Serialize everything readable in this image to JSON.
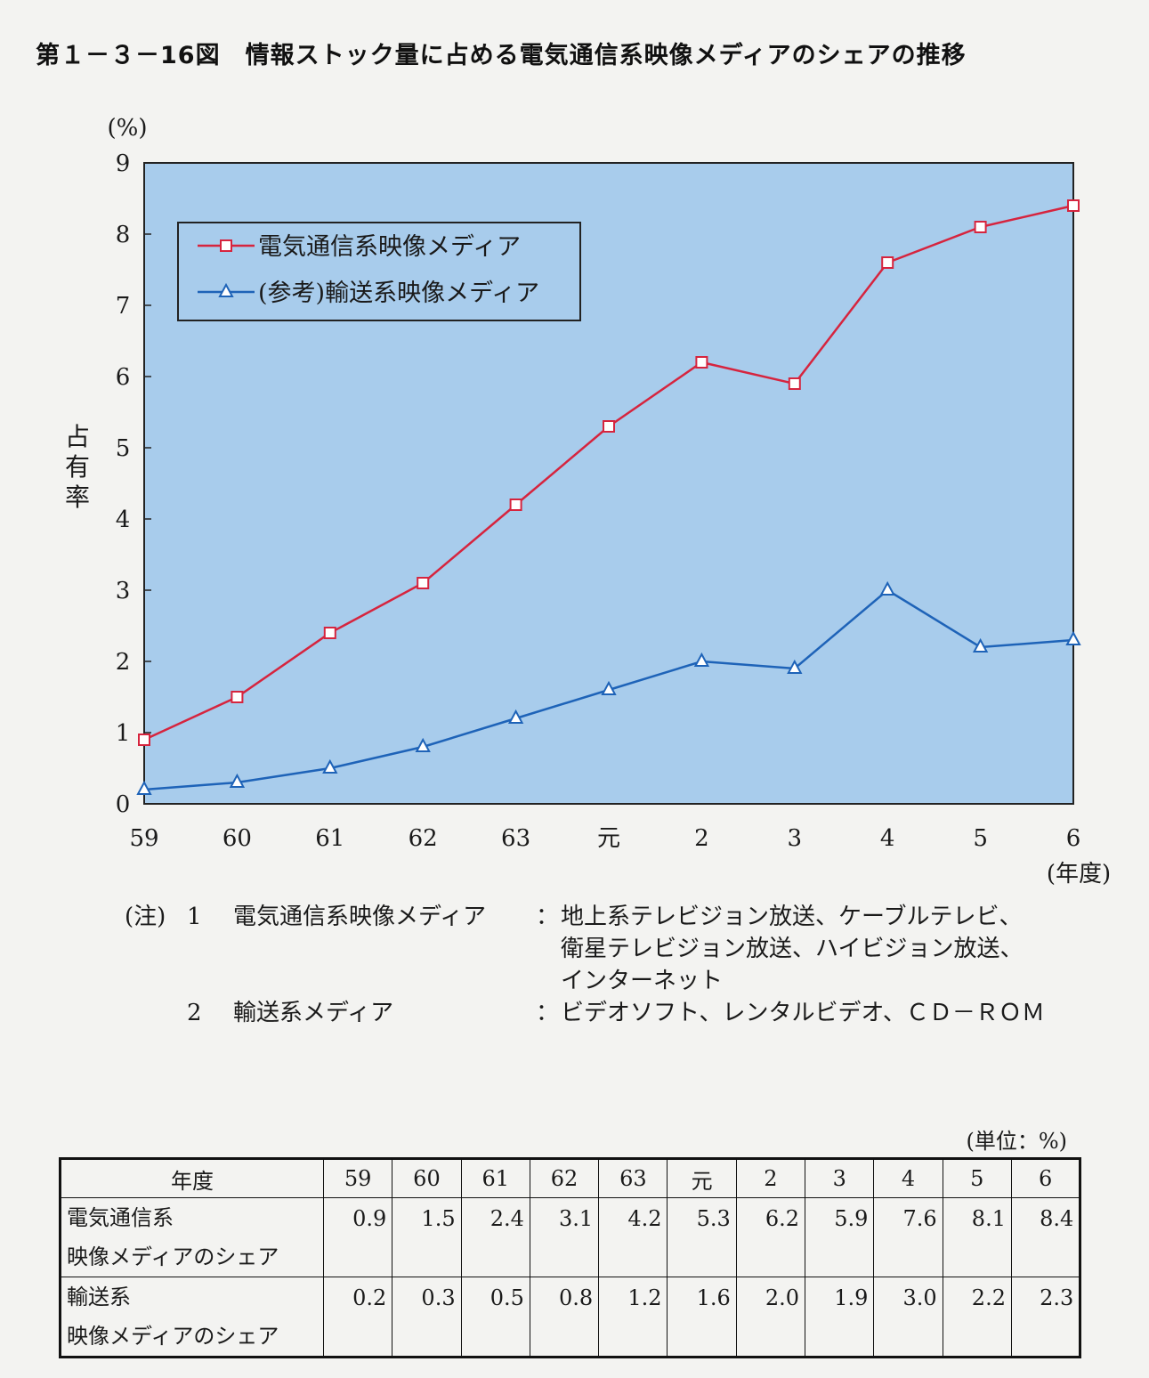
{
  "figure_title": "第１－３－16図　情報ストック量に占める電気通信系映像メディアのシェアの推移",
  "chart_data": {
    "type": "line",
    "categories": [
      "59",
      "60",
      "61",
      "62",
      "63",
      "元",
      "2",
      "3",
      "4",
      "5",
      "6"
    ],
    "series": [
      {
        "name": "電気通信系映像メディア",
        "marker": "square",
        "color": "#d6243e",
        "values": [
          0.9,
          1.5,
          2.4,
          3.1,
          4.2,
          5.3,
          6.2,
          5.9,
          7.6,
          8.1,
          8.4
        ]
      },
      {
        "name": "(参考)輸送系映像メディア",
        "marker": "triangle",
        "color": "#1e63b8",
        "values": [
          0.2,
          0.3,
          0.5,
          0.8,
          1.2,
          1.6,
          2.0,
          1.9,
          3.0,
          2.2,
          2.3
        ]
      }
    ],
    "ylabel": "占有率",
    "yunit": "(%)",
    "xunit": "(年度)",
    "ylim": [
      0,
      9
    ],
    "yticks": [
      0,
      1,
      2,
      3,
      4,
      5,
      6,
      7,
      8,
      9
    ],
    "plot_background": "#a8ccec",
    "legend_position": "top-left",
    "grid": false
  },
  "notes": {
    "prefix": "(注)",
    "items": [
      {
        "num": "1",
        "term": "電気通信系映像メディア",
        "colon": "：",
        "lines": [
          "地上系テレビジョン放送、ケーブルテレビ、",
          "衛星テレビジョン放送、ハイビジョン放送、",
          "インターネット"
        ]
      },
      {
        "num": "2",
        "term": "輸送系メディア",
        "colon": "：",
        "lines": [
          "ビデオソフト、レンタルビデオ、ＣＤ－ＲＯＭ"
        ]
      }
    ]
  },
  "table": {
    "unit": "(単位：%)",
    "header_label": "年度",
    "years": [
      "59",
      "60",
      "61",
      "62",
      "63",
      "元",
      "2",
      "3",
      "4",
      "5",
      "6"
    ],
    "rows": [
      {
        "label": "電気通信系\n映像メディアのシェア",
        "values": [
          "0.9",
          "1.5",
          "2.4",
          "3.1",
          "4.2",
          "5.3",
          "6.2",
          "5.9",
          "7.6",
          "8.1",
          "8.4"
        ]
      },
      {
        "label": "輸送系\n映像メディアのシェア",
        "values": [
          "0.2",
          "0.3",
          "0.5",
          "0.8",
          "1.2",
          "1.6",
          "2.0",
          "1.9",
          "3.0",
          "2.2",
          "2.3"
        ]
      }
    ]
  }
}
